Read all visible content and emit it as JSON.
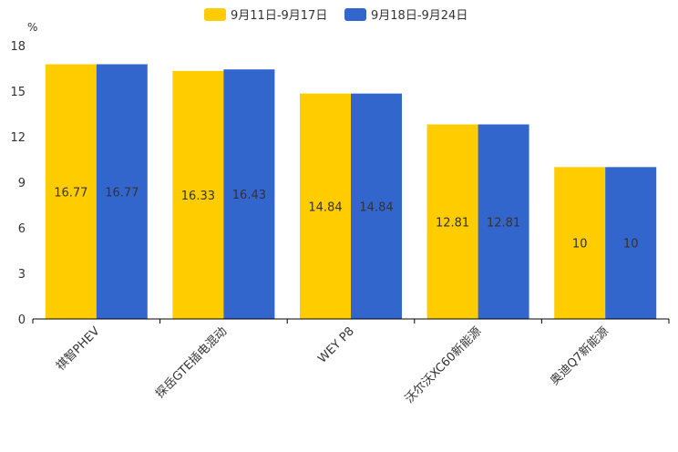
{
  "chart_data": {
    "type": "bar",
    "title": "",
    "xlabel": "",
    "ylabel": "%",
    "ylim": [
      0,
      18
    ],
    "yticks": [
      0,
      3,
      6,
      9,
      12,
      15,
      18
    ],
    "grid": false,
    "legend_position": "top-center",
    "categories": [
      "祺智PHEV",
      "探岳GTE插电混动",
      "WEY P8",
      "沃尔沃XC60新能源",
      "奥迪Q7新能源"
    ],
    "series": [
      {
        "name": "9月11日-9月17日",
        "color": "#FFCC00",
        "values": [
          16.77,
          16.33,
          14.84,
          12.81,
          10
        ]
      },
      {
        "name": "9月18日-9月24日",
        "color": "#3366CC",
        "values": [
          16.77,
          16.43,
          14.84,
          12.81,
          10
        ]
      }
    ]
  }
}
